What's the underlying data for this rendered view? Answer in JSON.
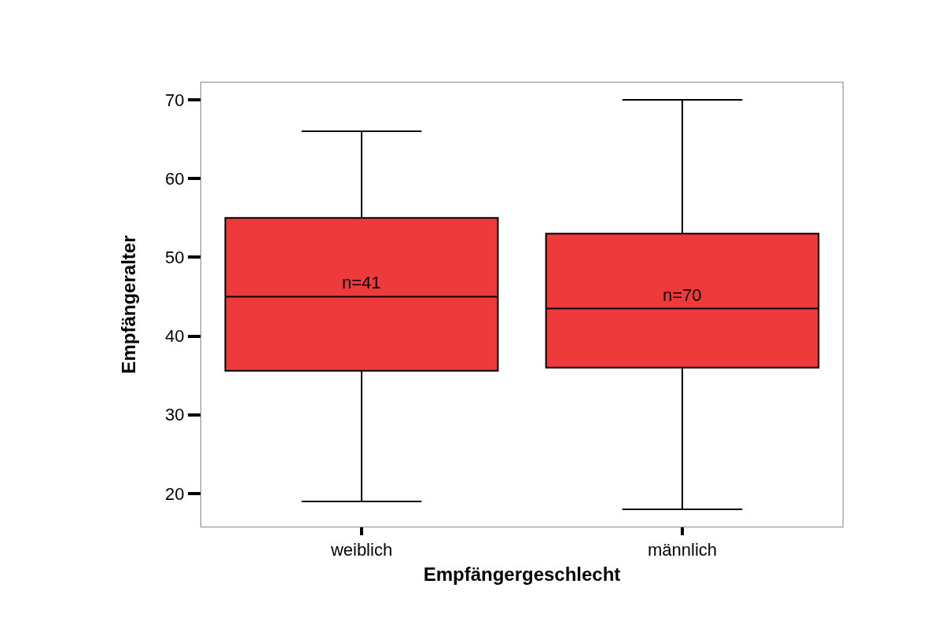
{
  "chart_data": {
    "type": "box",
    "xlabel": "Empfängergeschlecht",
    "ylabel": "Empfängeralter",
    "categories": [
      "weiblich",
      "männlich"
    ],
    "boxes": [
      {
        "low": 19,
        "q1": 35.6,
        "median": 45,
        "q3": 55,
        "high": 66
      },
      {
        "low": 18,
        "q1": 36,
        "median": 43.5,
        "q3": 53,
        "high": 70
      }
    ],
    "color": "#ee3a3a",
    "ylim": [
      15.8,
      72.2
    ],
    "yticks": [
      20,
      30,
      40,
      50,
      60,
      70
    ],
    "annotations": [
      "n=41",
      "n=70"
    ]
  }
}
